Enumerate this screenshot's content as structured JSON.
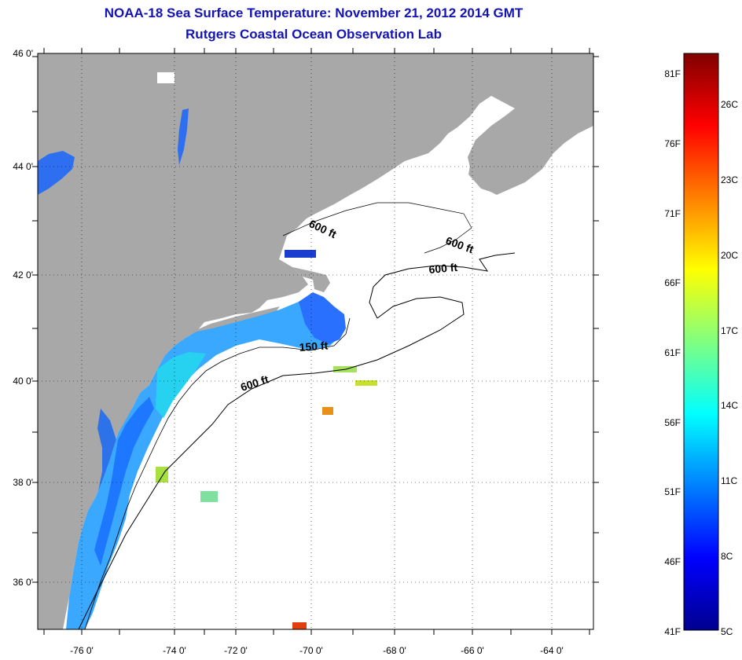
{
  "header": {
    "title": "NOAA-18 Sea Surface Temperature:  November 21, 2012 2014 GMT",
    "subtitle": "Rutgers Coastal Ocean Observation Lab"
  },
  "map": {
    "lat_labels": [
      "46 0'",
      "44 0'",
      "42 0'",
      "40 0'",
      "38 0'",
      "36 0'"
    ],
    "lon_labels": [
      "-76 0'",
      "-74 0'",
      "-72 0'",
      "-70 0'",
      "-68 0'",
      "-66 0'",
      "-64 0'"
    ],
    "lat_range": [
      35,
      46
    ],
    "lon_range": [
      -77,
      -62.3
    ],
    "contour_labels": [
      "600 ft",
      "600 ft",
      "600 ft",
      "150 ft",
      "600 ft"
    ],
    "colors": {
      "land": "#a8a8a8",
      "ocean_nodata": "#ffffff",
      "sst_cold": "#1e64ff",
      "sst_mid": "#3cb4ff",
      "sst_warm": "#00e0ff"
    }
  },
  "colorbar": {
    "f_labels": [
      "81F",
      "76F",
      "71F",
      "66F",
      "61F",
      "56F",
      "51F",
      "46F",
      "41F"
    ],
    "c_labels": [
      "26C",
      "23C",
      "20C",
      "17C",
      "14C",
      "11C",
      "8C",
      "5C"
    ],
    "stops": [
      "#00008f",
      "#0000ff",
      "#0080ff",
      "#00ffff",
      "#80ff80",
      "#ffff00",
      "#ff8000",
      "#ff0000",
      "#800000"
    ]
  }
}
